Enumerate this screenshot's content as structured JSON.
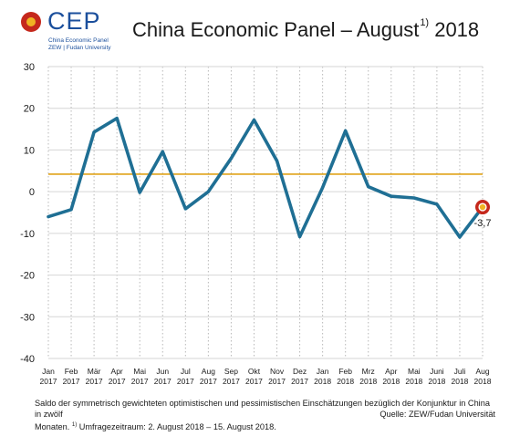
{
  "logo": {
    "name": "CEP",
    "line1": "China Economic Panel",
    "line2": "ZEW | Fudan University"
  },
  "title": {
    "text": "China Economic Panel – August",
    "sup": "1)",
    "year": " 2018"
  },
  "chart_data": {
    "type": "line",
    "ylim": [
      -40,
      30
    ],
    "yticks": [
      -40,
      -30,
      -20,
      -10,
      0,
      10,
      20,
      30
    ],
    "months": [
      "Jan",
      "Feb",
      "Mär",
      "Apr",
      "Mai",
      "Jun",
      "Jul",
      "Aug",
      "Sep",
      "Okt",
      "Nov",
      "Dez",
      "Jan",
      "Feb",
      "Mrz",
      "Apr",
      "Mai",
      "Juni",
      "Juli",
      "Aug"
    ],
    "years": [
      "2017",
      "2017",
      "2017",
      "2017",
      "2017",
      "2017",
      "2017",
      "2017",
      "2017",
      "2017",
      "2017",
      "2017",
      "2018",
      "2018",
      "2018",
      "2018",
      "2018",
      "2018",
      "2018",
      "2018"
    ],
    "values": [
      -6.0,
      -4.3,
      14.3,
      17.6,
      -0.2,
      9.6,
      -4.1,
      0.0,
      8.0,
      17.2,
      7.4,
      -10.8,
      1.0,
      14.6,
      1.2,
      -1.1,
      -1.5,
      -3.0,
      -10.9,
      -3.7
    ],
    "reference_line": 4.2,
    "last_label": "-3,7",
    "colors": {
      "series": "#1f6f94",
      "reference": "#e0a31a",
      "marker_outer": "#c5281c",
      "marker_inner": "#f0b323"
    }
  },
  "footer": {
    "line1": "Saldo der symmetrisch gewichteten optimistischen und pessimistischen Einschätzungen bezüglich der Konjunktur in China in zwölf",
    "line2_a": "Monaten. ",
    "line2_sup": "1)",
    "line2_b": " Umfragezeitraum: 2. August 2018 – 15. August 2018.",
    "source": "Quelle: ZEW/Fudan Universität"
  }
}
